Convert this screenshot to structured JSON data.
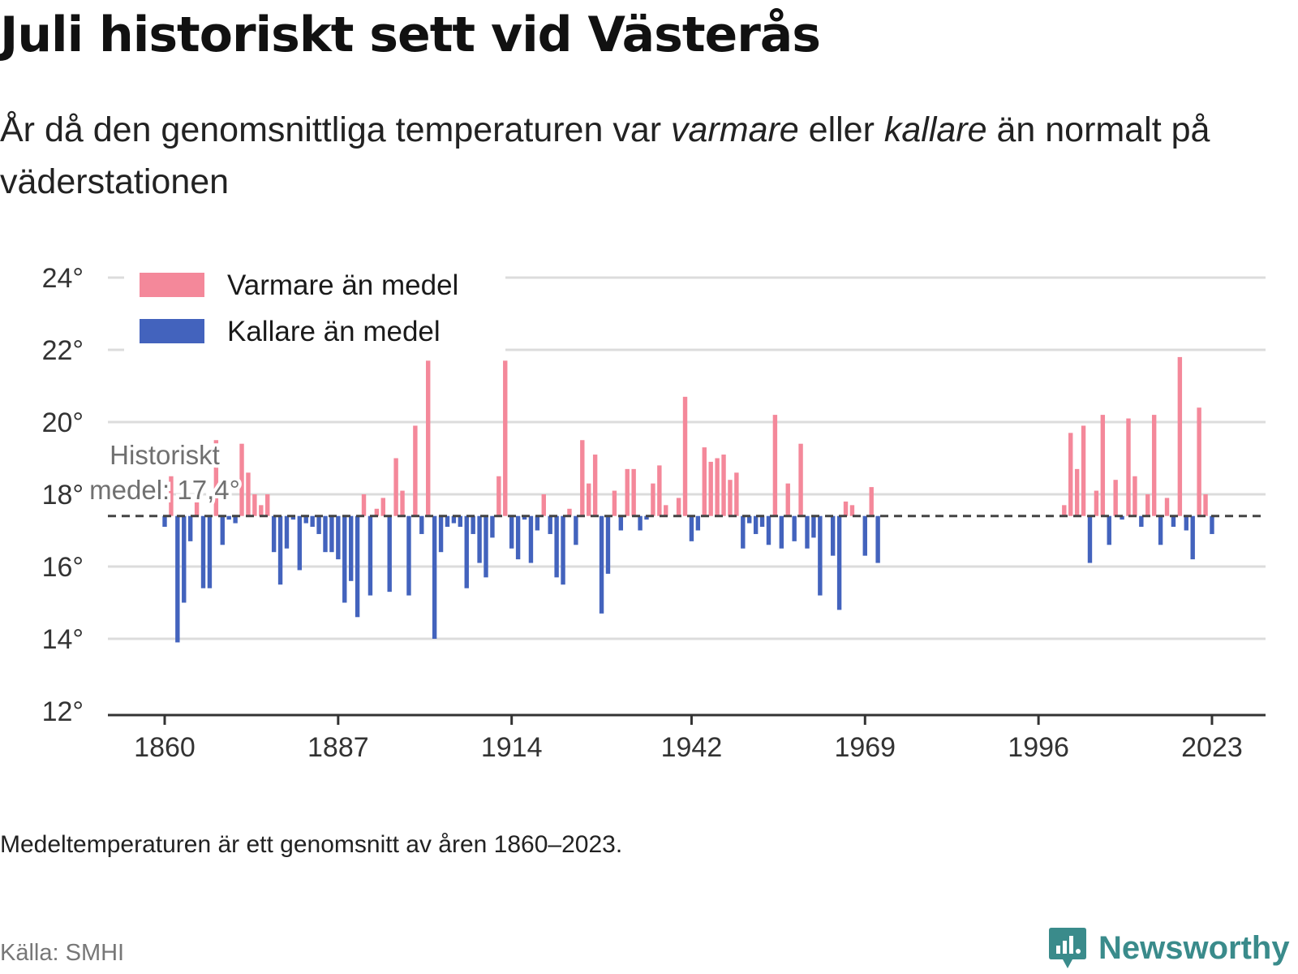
{
  "title": "Juli historiskt sett vid Västerås",
  "subtitle": {
    "p1": "År då den genomsnittliga temperaturen var ",
    "warm_word": "varmare",
    "p2": " eller ",
    "cold_word": "kallare",
    "p3": " än normalt på väderstationen"
  },
  "footnote": "Medeltemperaturen är ett genomsnitt av åren 1860–2023.",
  "source": "Källa: SMHI",
  "brand": {
    "name": "Newsworthy",
    "icon": "newsworthy-logo-icon",
    "color": "#3a8b8b"
  },
  "chart_data": {
    "type": "bar",
    "baseline": 17.4,
    "baseline_label_line1": "Historiskt",
    "baseline_label_line2": "medel: 17,4°",
    "ylim": [
      12,
      24
    ],
    "y_ticks": [
      12,
      14,
      16,
      18,
      20,
      22,
      24
    ],
    "y_tick_suffix": "°",
    "x_ticks": [
      1860,
      1887,
      1914,
      1942,
      1969,
      1996,
      2023
    ],
    "grid": true,
    "legend_placement": "top-left",
    "legend": [
      {
        "name": "Varmare än medel",
        "color": "#f4889a"
      },
      {
        "name": "Kallare än medel",
        "color": "#4363bd"
      }
    ],
    "x": [
      1860,
      1861,
      1862,
      1863,
      1864,
      1865,
      1866,
      1867,
      1868,
      1869,
      1870,
      1871,
      1872,
      1873,
      1874,
      1875,
      1876,
      1877,
      1878,
      1879,
      1880,
      1881,
      1882,
      1883,
      1884,
      1885,
      1886,
      1887,
      1888,
      1889,
      1890,
      1891,
      1892,
      1893,
      1894,
      1895,
      1896,
      1897,
      1898,
      1899,
      1900,
      1901,
      1902,
      1903,
      1904,
      1905,
      1906,
      1907,
      1908,
      1909,
      1910,
      1911,
      1912,
      1913,
      1914,
      1915,
      1916,
      1917,
      1918,
      1919,
      1920,
      1921,
      1922,
      1923,
      1924,
      1925,
      1926,
      1927,
      1928,
      1929,
      1930,
      1931,
      1932,
      1933,
      1934,
      1935,
      1936,
      1937,
      1938,
      1939,
      1940,
      1941,
      1942,
      1943,
      1944,
      1945,
      1946,
      1947,
      1948,
      1949,
      1950,
      1951,
      1952,
      1953,
      1954,
      1955,
      1956,
      1957,
      1958,
      1959,
      1960,
      1961,
      1962,
      1963,
      1964,
      1965,
      1966,
      1967,
      1968,
      1969,
      1970,
      1971,
      2000,
      2001,
      2002,
      2003,
      2004,
      2005,
      2006,
      2007,
      2008,
      2009,
      2010,
      2011,
      2012,
      2013,
      2014,
      2015,
      2016,
      2017,
      2018,
      2019,
      2020,
      2021,
      2022,
      2023
    ],
    "values": [
      17.1,
      18.5,
      13.9,
      15.0,
      16.7,
      17.8,
      15.4,
      15.4,
      19.5,
      16.6,
      17.3,
      17.2,
      19.4,
      18.6,
      18.0,
      17.7,
      18.0,
      16.4,
      15.5,
      16.5,
      17.3,
      15.9,
      17.2,
      17.1,
      16.9,
      16.4,
      16.4,
      16.2,
      15.0,
      15.6,
      14.6,
      18.0,
      15.2,
      17.6,
      17.9,
      15.3,
      19.0,
      18.1,
      15.2,
      19.9,
      16.9,
      21.7,
      14.0,
      16.4,
      17.1,
      17.2,
      17.1,
      15.4,
      16.9,
      16.1,
      15.7,
      16.8,
      18.5,
      21.7,
      16.5,
      16.2,
      17.3,
      16.1,
      17.0,
      18.0,
      16.9,
      15.7,
      15.5,
      17.6,
      16.6,
      19.5,
      18.3,
      19.1,
      14.7,
      15.8,
      18.1,
      17.0,
      18.7,
      18.7,
      17.0,
      17.3,
      18.3,
      18.8,
      17.7,
      17.4,
      17.9,
      20.7,
      16.7,
      17.0,
      19.3,
      18.9,
      19.0,
      19.1,
      18.4,
      18.6,
      16.5,
      17.2,
      16.9,
      17.1,
      16.6,
      20.2,
      16.5,
      18.3,
      16.7,
      19.4,
      16.5,
      16.8,
      15.2,
      17.4,
      16.3,
      14.8,
      17.8,
      17.7,
      17.4,
      16.3,
      18.2,
      16.1,
      17.7,
      19.7,
      18.7,
      19.9,
      16.1,
      18.1,
      20.2,
      16.6,
      18.4,
      17.3,
      20.1,
      18.5,
      17.1,
      18.0,
      20.2,
      16.6,
      17.9,
      17.1,
      21.8,
      17.0,
      16.2,
      20.4,
      18.0,
      16.9
    ]
  }
}
